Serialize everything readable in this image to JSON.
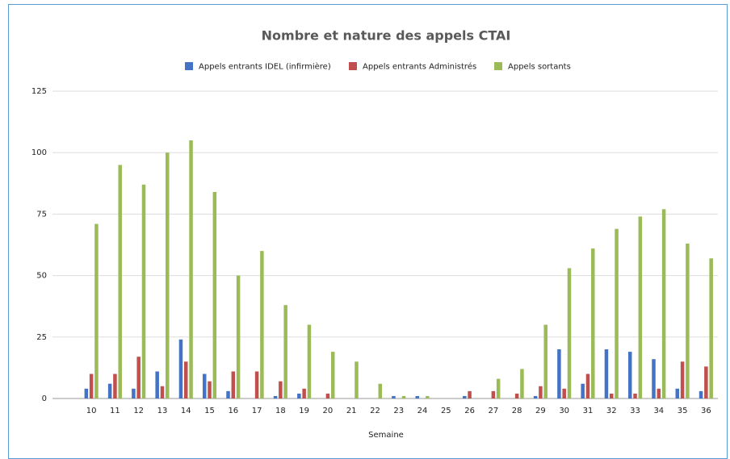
{
  "chart_data": {
    "type": "bar",
    "title": "Nombre et nature des appels CTAI",
    "x_label": "Semaine",
    "categories": [
      "10",
      "11",
      "12",
      "13",
      "14",
      "15",
      "16",
      "17",
      "18",
      "19",
      "20",
      "21",
      "22",
      "23",
      "24",
      "25",
      "26",
      "27",
      "28",
      "29",
      "30",
      "31",
      "32",
      "33",
      "34",
      "35",
      "36"
    ],
    "series": [
      {
        "name": "Appels entrants IDEL (infirmière)",
        "color": "#4472c4",
        "values": [
          4,
          6,
          4,
          11,
          24,
          10,
          3,
          0,
          1,
          2,
          0,
          0,
          0,
          1,
          1,
          0,
          1,
          0,
          0,
          1,
          20,
          6,
          20,
          19,
          16,
          4,
          3
        ]
      },
      {
        "name": "Appels entrants Administrés",
        "color": "#c0504d",
        "values": [
          10,
          10,
          17,
          5,
          15,
          7,
          11,
          11,
          7,
          4,
          2,
          0,
          0,
          0,
          0,
          0,
          3,
          3,
          2,
          5,
          4,
          10,
          2,
          2,
          4,
          15,
          13
        ]
      },
      {
        "name": "Appels sortants",
        "color": "#9bbb59",
        "values": [
          71,
          95,
          87,
          100,
          105,
          84,
          50,
          60,
          38,
          30,
          19,
          15,
          6,
          1,
          1,
          0,
          0,
          8,
          12,
          30,
          53,
          61,
          69,
          74,
          77,
          63,
          57
        ]
      }
    ],
    "ylim": [
      0,
      125
    ],
    "yticks": [
      0,
      25,
      50,
      75,
      100,
      125
    ],
    "grid": true,
    "legend": "top"
  }
}
